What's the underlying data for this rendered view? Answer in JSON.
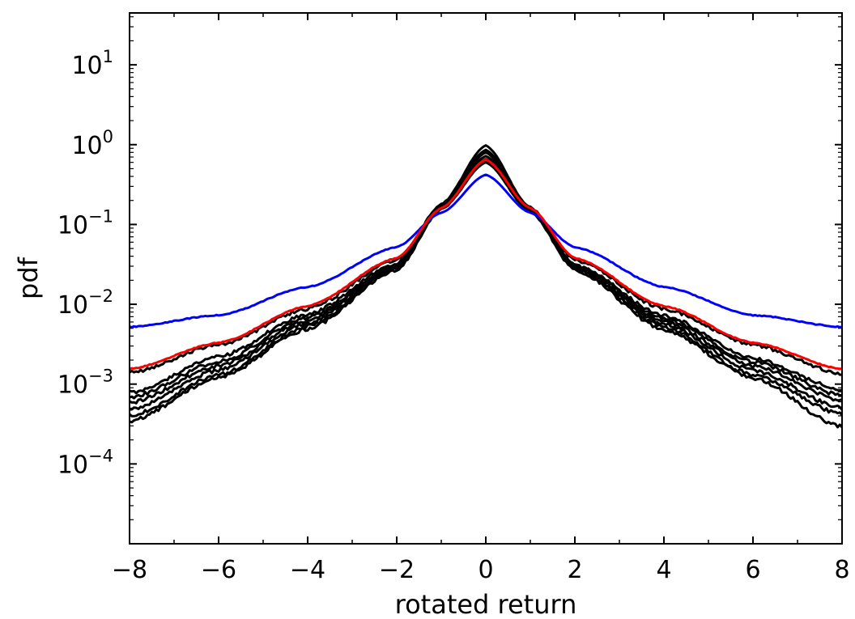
{
  "chart_data": {
    "type": "line",
    "title": "",
    "xlabel": "rotated return",
    "ylabel": "pdf",
    "xlim": [
      -8,
      8
    ],
    "ylim_log10": [
      -5,
      1.65
    ],
    "yscale": "log",
    "grid": false,
    "legend": "none",
    "x_ticks": [
      {
        "value": -8,
        "label": "−8"
      },
      {
        "value": -6,
        "label": "−6"
      },
      {
        "value": -4,
        "label": "−4"
      },
      {
        "value": -2,
        "label": "−2"
      },
      {
        "value": 0,
        "label": "0"
      },
      {
        "value": 2,
        "label": "2"
      },
      {
        "value": 4,
        "label": "4"
      },
      {
        "value": 6,
        "label": "6"
      },
      {
        "value": 8,
        "label": "8"
      }
    ],
    "y_ticks": [
      {
        "exp": 1,
        "base": "10",
        "sup": "1"
      },
      {
        "exp": 0,
        "base": "10",
        "sup": "0"
      },
      {
        "exp": -1,
        "base": "10",
        "sup": "−1"
      },
      {
        "exp": -2,
        "base": "10",
        "sup": "−2"
      },
      {
        "exp": -3,
        "base": "10",
        "sup": "−3"
      },
      {
        "exp": -4,
        "base": "10",
        "sup": "−4"
      }
    ],
    "series": [
      {
        "name": "blue",
        "color": "#0000ff",
        "knots": [
          [
            -8,
            0.0052
          ],
          [
            -6,
            0.0073
          ],
          [
            -4,
            0.0165
          ],
          [
            -2,
            0.052
          ],
          [
            -1,
            0.14
          ],
          [
            0,
            0.42
          ],
          [
            1,
            0.14
          ],
          [
            2,
            0.052
          ],
          [
            4,
            0.0165
          ],
          [
            6,
            0.0073
          ],
          [
            8,
            0.0052
          ]
        ]
      },
      {
        "name": "red",
        "color": "#ff0000",
        "knots": [
          [
            -8,
            0.00155
          ],
          [
            -6,
            0.0033
          ],
          [
            -4,
            0.0095
          ],
          [
            -2,
            0.038
          ],
          [
            -1,
            0.16
          ],
          [
            0,
            0.65
          ],
          [
            1,
            0.16
          ],
          [
            2,
            0.038
          ],
          [
            4,
            0.0095
          ],
          [
            6,
            0.0033
          ],
          [
            8,
            0.00155
          ]
        ]
      },
      {
        "name": "black-1",
        "color": "#000000",
        "knots": [
          [
            -8,
            0.0014
          ],
          [
            -6,
            0.0031
          ],
          [
            -4,
            0.0088
          ],
          [
            -2,
            0.036
          ],
          [
            -1,
            0.16
          ],
          [
            0,
            0.62
          ],
          [
            1,
            0.16
          ],
          [
            2,
            0.036
          ],
          [
            4,
            0.0088
          ],
          [
            6,
            0.0031
          ],
          [
            8,
            0.00135
          ]
        ]
      },
      {
        "name": "black-2",
        "color": "#000000",
        "knots": [
          [
            -8,
            0.00078
          ],
          [
            -6,
            0.0022
          ],
          [
            -4,
            0.0075
          ],
          [
            -2,
            0.032
          ],
          [
            -1,
            0.18
          ],
          [
            0,
            0.98
          ],
          [
            1,
            0.16
          ],
          [
            2,
            0.031
          ],
          [
            4,
            0.0072
          ],
          [
            6,
            0.0021
          ],
          [
            8,
            0.00085
          ]
        ]
      },
      {
        "name": "black-3",
        "color": "#000000",
        "knots": [
          [
            -8,
            0.00068
          ],
          [
            -6,
            0.0019
          ],
          [
            -4,
            0.0068
          ],
          [
            -2,
            0.031
          ],
          [
            -1,
            0.175
          ],
          [
            0,
            0.86
          ],
          [
            1,
            0.165
          ],
          [
            2,
            0.031
          ],
          [
            4,
            0.0066
          ],
          [
            6,
            0.0019
          ],
          [
            8,
            0.00072
          ]
        ]
      },
      {
        "name": "black-4",
        "color": "#000000",
        "knots": [
          [
            -8,
            0.00058
          ],
          [
            -6,
            0.0017
          ],
          [
            -4,
            0.0063
          ],
          [
            -2,
            0.03
          ],
          [
            -1,
            0.17
          ],
          [
            0,
            0.8
          ],
          [
            1,
            0.16
          ],
          [
            2,
            0.03
          ],
          [
            4,
            0.0061
          ],
          [
            6,
            0.0017
          ],
          [
            8,
            0.00062
          ]
        ]
      },
      {
        "name": "black-5",
        "color": "#000000",
        "knots": [
          [
            -8,
            0.00048
          ],
          [
            -6,
            0.0015
          ],
          [
            -4,
            0.0058
          ],
          [
            -2,
            0.029
          ],
          [
            -1,
            0.165
          ],
          [
            0,
            0.72
          ],
          [
            1,
            0.155
          ],
          [
            2,
            0.029
          ],
          [
            4,
            0.0057
          ],
          [
            6,
            0.0015
          ],
          [
            8,
            0.0005
          ]
        ]
      },
      {
        "name": "black-6",
        "color": "#000000",
        "knots": [
          [
            -8,
            0.0004
          ],
          [
            -6,
            0.0013
          ],
          [
            -4,
            0.0053
          ],
          [
            -2,
            0.028
          ],
          [
            -1,
            0.16
          ],
          [
            0,
            0.66
          ],
          [
            1,
            0.15
          ],
          [
            2,
            0.028
          ],
          [
            4,
            0.0052
          ],
          [
            6,
            0.0013
          ],
          [
            8,
            0.00042
          ]
        ]
      },
      {
        "name": "black-7",
        "color": "#000000",
        "knots": [
          [
            -8,
            0.00034
          ],
          [
            -6,
            0.0012
          ],
          [
            -4,
            0.0049
          ],
          [
            -2,
            0.027
          ],
          [
            -1,
            0.155
          ],
          [
            0,
            0.6
          ],
          [
            1,
            0.145
          ],
          [
            2,
            0.027
          ],
          [
            4,
            0.0048
          ],
          [
            6,
            0.0012
          ],
          [
            8,
            0.00029
          ]
        ]
      }
    ]
  }
}
